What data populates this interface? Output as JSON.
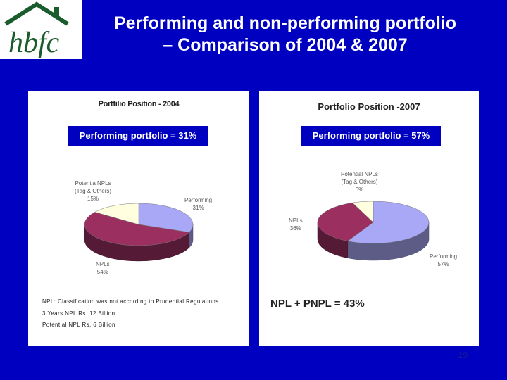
{
  "logo": {
    "text": "hbfc"
  },
  "title": {
    "line1": "Performing and non-performing portfolio",
    "line2": "– Comparison of 2004 & 2007"
  },
  "colors": {
    "background": "#0000c0",
    "performing": "#a8a8f6",
    "npl": "#9b3060",
    "potential_npl": "#ffffe0"
  },
  "chart_data": [
    {
      "type": "pie",
      "title": "Portfilio Position - 2004",
      "categories": [
        "Performing",
        "NPLs",
        "Potential NPLs (Tag & Others)"
      ],
      "values": [
        31,
        54,
        15
      ],
      "display_labels": [
        "31%",
        "54%",
        "15%"
      ],
      "label_lines": [
        [
          "Performing",
          "31%"
        ],
        [
          "NPLs",
          "54%"
        ],
        [
          "Potentia NPLs",
          "(Tag & Others)",
          "15%"
        ]
      ],
      "colors": [
        "#a8a8f6",
        "#9b3060",
        "#ffffe0"
      ],
      "callout": "Performing portfolio = 31%",
      "notes": [
        "NPL: Classification was not according to Prudential Regulations",
        "3 Years NPL Rs. 12 Billion",
        "Potential NPL Rs. 6 Billion"
      ]
    },
    {
      "type": "pie",
      "title": "Portfolio Position -2007",
      "categories": [
        "Performing",
        "NPLs",
        "Potential NPLs (Tag & Others)"
      ],
      "values": [
        57,
        36,
        6
      ],
      "display_labels": [
        "57%",
        "36%",
        "6%"
      ],
      "label_lines": [
        [
          "Performing",
          "57%"
        ],
        [
          "NPLs",
          "36%"
        ],
        [
          "Potential NPLs",
          "(Tag & Others)",
          "6%"
        ]
      ],
      "colors": [
        "#a8a8f6",
        "#9b3060",
        "#ffffe0"
      ],
      "callout": "Performing portfolio = 57%",
      "summary": "NPL + PNPL = 43%"
    }
  ],
  "page_number": "19"
}
